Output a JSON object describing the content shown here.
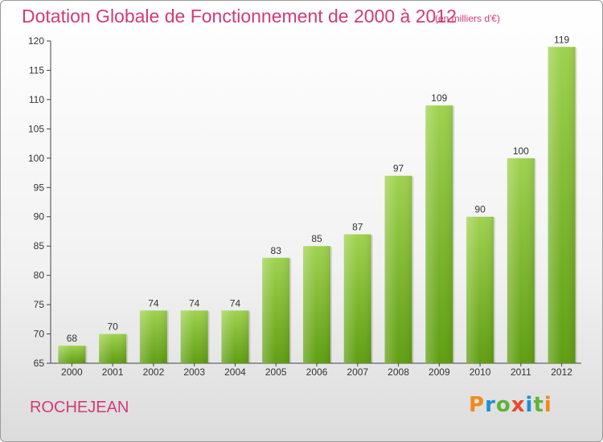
{
  "header": {
    "title": "Dotation Globale de Fonctionnement de 2000 à 2012",
    "unit": "(en milliers d'€)"
  },
  "footer": {
    "commune": "ROCHEJEAN",
    "logo_text": "Proxiti"
  },
  "colors": {
    "accent": "#d23a78",
    "bar_top": "#9fd24f",
    "bar_bottom": "#5f9e12",
    "logo": [
      "#f08a1c",
      "#1e8fd6",
      "#5fb33a",
      "#e84a2a",
      "#1e8fd6",
      "#5fb33a",
      "#f08a1c"
    ]
  },
  "chart_data": {
    "type": "bar",
    "title": "Dotation Globale de Fonctionnement de 2000 à 2012",
    "subtitle": "(en milliers d'€)",
    "categories": [
      "2000",
      "2001",
      "2002",
      "2003",
      "2004",
      "2005",
      "2006",
      "2007",
      "2008",
      "2009",
      "2010",
      "2011",
      "2012"
    ],
    "values": [
      68,
      70,
      74,
      74,
      74,
      83,
      85,
      87,
      97,
      109,
      90,
      100,
      119
    ],
    "ylim": [
      65,
      120
    ],
    "yticks": [
      65,
      70,
      75,
      80,
      85,
      90,
      95,
      100,
      105,
      110,
      115,
      120
    ],
    "grid": false
  }
}
